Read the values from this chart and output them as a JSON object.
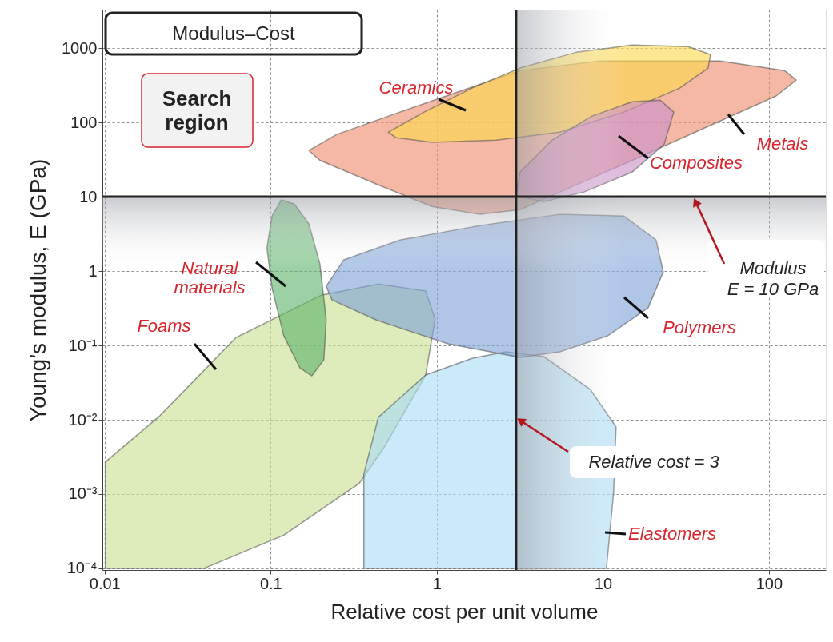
{
  "chart_data": {
    "type": "area",
    "title": "Modulus–Cost",
    "xlabel": "Relative cost per unit volume",
    "ylabel": "Young’s modulus, E (GPa)",
    "log": "xy",
    "grid": true,
    "xlim": [
      0.0097,
      220
    ],
    "xticks": [
      0.01,
      0.1,
      1,
      10,
      100
    ],
    "ylim": [
      9.5e-05,
      3300
    ],
    "yticks": [
      {
        "value": 0.0001,
        "label": "10⁻⁴"
      },
      {
        "value": 0.001,
        "label": "10⁻³"
      },
      {
        "value": 0.01,
        "label": "10⁻²"
      },
      {
        "value": 0.1,
        "label": "10⁻¹"
      },
      1,
      10,
      100,
      1000
    ],
    "series": [
      {
        "name": "Foams",
        "color": "#c9df8f",
        "x": [
          0.0101,
          0.0101,
          0.0215,
          0.062,
          0.202,
          0.445,
          0.857,
          0.977,
          0.857,
          0.48,
          0.34,
          0.12,
          0.0397
        ],
        "values": [
          0.0001,
          0.0027,
          0.0113,
          0.128,
          0.475,
          0.67,
          0.54,
          0.226,
          0.04,
          0.0042,
          0.00138,
          0.00028,
          0.0001
        ]
      },
      {
        "name": "Elastomers",
        "color": "#a9dcf5",
        "x": [
          0.364,
          0.364,
          0.445,
          0.857,
          1.63,
          2.6,
          4.4,
          8.4,
          12,
          11.6,
          10.5
        ],
        "values": [
          0.0001,
          0.00186,
          0.0108,
          0.04,
          0.067,
          0.082,
          0.071,
          0.0256,
          0.008,
          0.00105,
          0.0001
        ]
      },
      {
        "name": "Polymers",
        "color": "#7ea3d8",
        "x": [
          0.216,
          0.276,
          0.6,
          1.82,
          5.5,
          13.4,
          20.9,
          23.1,
          18.7,
          10.7,
          5.5,
          3.17,
          1.17,
          0.43,
          0.234
        ],
        "values": [
          0.625,
          1.42,
          2.62,
          4.1,
          5.8,
          5.5,
          2.62,
          0.975,
          0.32,
          0.135,
          0.082,
          0.069,
          0.105,
          0.221,
          0.41
        ]
      },
      {
        "name": "Natural materials",
        "color": "#5eb56a",
        "x": [
          0.116,
          0.102,
          0.095,
          0.102,
          0.12,
          0.15,
          0.177,
          0.209,
          0.216,
          0.198,
          0.17,
          0.139
        ],
        "values": [
          9.1,
          5.5,
          2.05,
          0.594,
          0.135,
          0.05,
          0.039,
          0.064,
          0.221,
          1.25,
          4.3,
          8.0
        ]
      },
      {
        "name": "Metals",
        "color": "#ef8c6e",
        "x": [
          0.17,
          0.25,
          0.6,
          1.46,
          3.17,
          9.6,
          50.8,
          124,
          146,
          110,
          40.7,
          13.4,
          5.5,
          3.17,
          1.82,
          0.935,
          0.43,
          0.198
        ],
        "values": [
          42,
          69,
          138,
          276,
          500,
          673,
          673,
          500,
          372,
          226,
          84,
          27.6,
          11.6,
          6.7,
          5.8,
          7.4,
          14.9,
          31
        ]
      },
      {
        "name": "Ceramics",
        "color": "#fbd84c",
        "x": [
          0.51,
          0.84,
          1.63,
          3.17,
          6.9,
          15,
          32.6,
          44.5,
          43,
          29,
          13.4,
          5.5,
          2.28,
          0.935,
          0.57
        ],
        "values": [
          74,
          138,
          290,
          540,
          880,
          1100,
          1050,
          820,
          540,
          290,
          138,
          74,
          58,
          54,
          62.5
        ]
      },
      {
        "name": "Composites",
        "color": "#c98fc8",
        "x": [
          3.0,
          3.17,
          4.94,
          8.6,
          15,
          22.1,
          26.7,
          23.4,
          15,
          7.7,
          4.4
        ],
        "values": [
          10.3,
          21.5,
          58,
          122,
          190,
          200,
          138,
          51,
          21.5,
          11.6,
          8.6
        ]
      }
    ],
    "bands": [
      {
        "axis": "x",
        "from": 3,
        "to": 14,
        "color": "#9a9ea6"
      },
      {
        "axis": "y",
        "from": 1,
        "to": 10,
        "color": "#9a9ea6"
      }
    ],
    "ref_lines": [
      {
        "axis": "y",
        "value": 10,
        "label": "Modulus\nE = 10 GPa",
        "color": "#222222"
      },
      {
        "axis": "x",
        "value": 3,
        "label": "Relative cost = 3",
        "color": "#222222"
      }
    ],
    "annotations": [
      "Search region"
    ]
  }
}
